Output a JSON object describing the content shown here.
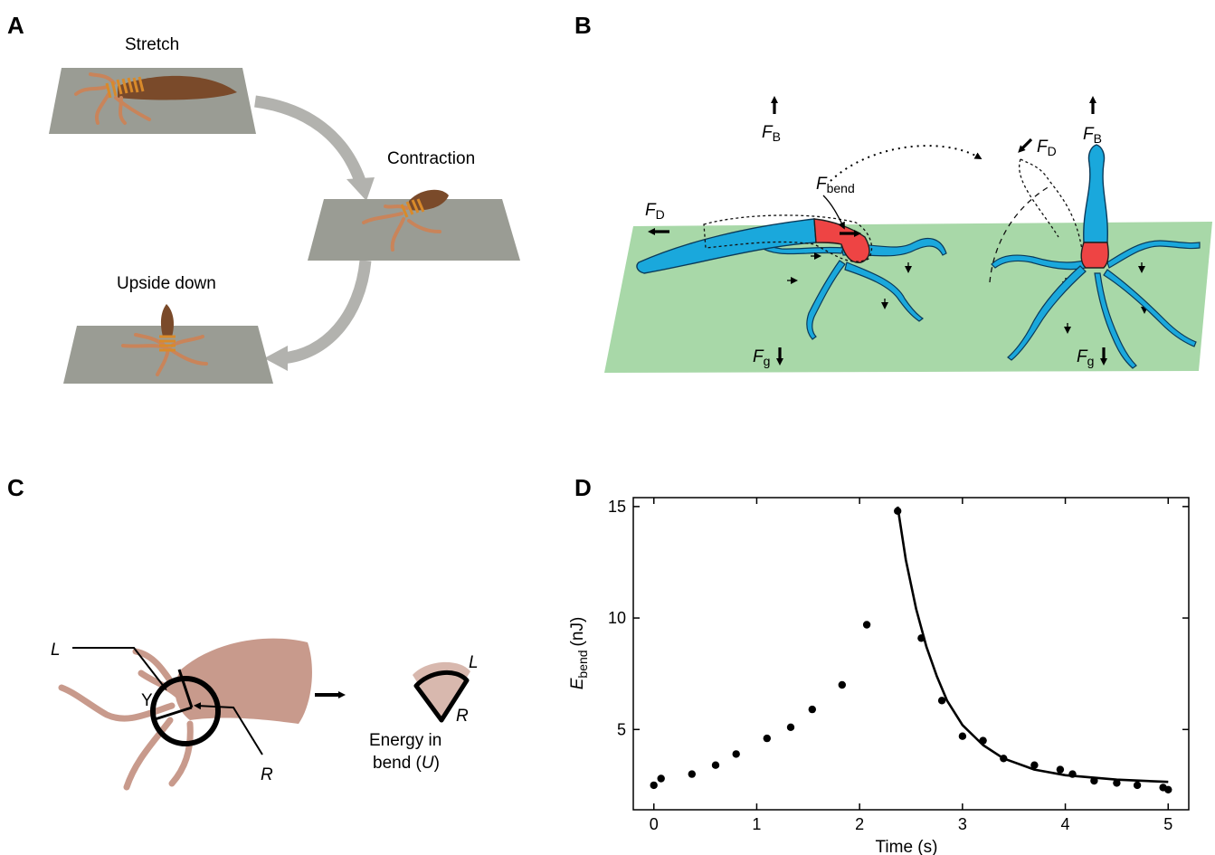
{
  "panels": {
    "a": {
      "letter": "A",
      "stretch": "Stretch",
      "contraction": "Contraction",
      "upside_down": "Upside down"
    },
    "b": {
      "letter": "B",
      "force_italic": "F",
      "sub_B": "B",
      "sub_D": "D",
      "sub_bend": "bend",
      "sub_g": "g"
    },
    "c": {
      "letter": "C",
      "L": "L",
      "R": "R",
      "gamma": "Y",
      "energy_line1": "Energy in",
      "energy_line2_pre": "bend (",
      "energy_line2_var": "U",
      "energy_line2_post": ")"
    },
    "d": {
      "letter": "D"
    }
  },
  "colors": {
    "plane_gray": "#9a9c94",
    "arrow_gray": "#b2b2ae",
    "body_brown": "#7a4a2a",
    "ring_orange": "#d98a2a",
    "plane_green": "#a8d8a8",
    "hydra_blue": "#1aa8dc",
    "hydra_red": "#ee4444",
    "tissue_pink": "#c89a8c"
  },
  "chart_data": {
    "type": "scatter",
    "xlabel": "Time (s)",
    "ylabel_main": "E",
    "ylabel_sub": "bend",
    "ylabel_unit": "(nJ)",
    "xlim": [
      -0.2,
      5.2
    ],
    "ylim": [
      1.4,
      15.4
    ],
    "xticks": [
      "0",
      "1",
      "2",
      "3",
      "4",
      "5"
    ],
    "yticks": [
      "5",
      "10",
      "15"
    ],
    "series": [
      {
        "points": [
          [
            0.0,
            2.5
          ],
          [
            0.07,
            2.8
          ],
          [
            0.37,
            3.0
          ],
          [
            0.6,
            3.4
          ],
          [
            0.8,
            3.9
          ],
          [
            1.1,
            4.6
          ],
          [
            1.33,
            5.1
          ],
          [
            1.54,
            5.9
          ],
          [
            1.83,
            7.0
          ],
          [
            2.07,
            9.7
          ],
          [
            2.37,
            14.8
          ],
          [
            2.6,
            9.1
          ],
          [
            2.8,
            6.3
          ],
          [
            3.0,
            4.7
          ],
          [
            3.2,
            4.5
          ],
          [
            3.4,
            3.7
          ],
          [
            3.7,
            3.4
          ],
          [
            3.95,
            3.2
          ],
          [
            4.07,
            3.0
          ],
          [
            4.28,
            2.7
          ],
          [
            4.5,
            2.6
          ],
          [
            4.7,
            2.5
          ],
          [
            4.95,
            2.4
          ],
          [
            5.0,
            2.3
          ]
        ]
      }
    ],
    "fit": [
      [
        2.37,
        15.0
      ],
      [
        2.45,
        12.6
      ],
      [
        2.55,
        10.4
      ],
      [
        2.65,
        8.7
      ],
      [
        2.75,
        7.4
      ],
      [
        2.85,
        6.3
      ],
      [
        3.0,
        5.2
      ],
      [
        3.2,
        4.3
      ],
      [
        3.4,
        3.7
      ],
      [
        3.7,
        3.2
      ],
      [
        4.0,
        2.95
      ],
      [
        4.5,
        2.75
      ],
      [
        5.0,
        2.65
      ]
    ]
  }
}
